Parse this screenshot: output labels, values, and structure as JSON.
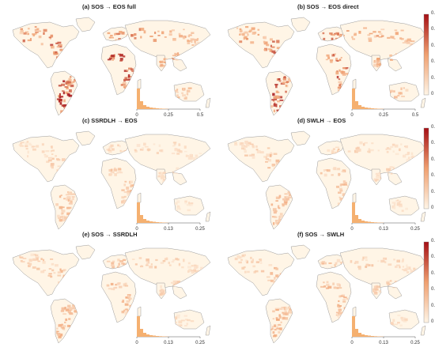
{
  "panels": [
    {
      "title": "(a) SOS → EOS full",
      "hist_ticks": [
        "0",
        "0.25",
        "0.5"
      ],
      "intensity": 1.0
    },
    {
      "title": "(b) SOS → EOS direct",
      "hist_ticks": [
        "0",
        "0.25",
        "0.5"
      ],
      "intensity": 0.9
    },
    {
      "title": "(c) SSRDLH → EOS",
      "hist_ticks": [
        "0",
        "0.13",
        "0.25"
      ],
      "intensity": 0.35
    },
    {
      "title": "(d) SWLH → EOS",
      "hist_ticks": [
        "0",
        "0.13",
        "0.25"
      ],
      "intensity": 0.4
    },
    {
      "title": "(e) SOS → SSRDLH",
      "hist_ticks": [
        "0",
        "0.13",
        "0.25"
      ],
      "intensity": 0.45
    },
    {
      "title": "(f) SOS → SWLH",
      "hist_ticks": [
        "0",
        "0.13",
        "0.25"
      ],
      "intensity": 0.45
    }
  ],
  "colorbars": [
    {
      "ticks": [
        "0.5",
        "0.4",
        "0.3",
        "0.2",
        "0.1",
        "0"
      ]
    },
    {
      "ticks": [
        "0.25",
        "0.2",
        "0.15",
        "0.1",
        "0.05",
        "0"
      ]
    },
    {
      "ticks": [
        "0.25",
        "0.2",
        "0.15",
        "0.1",
        "0.05",
        "0"
      ]
    }
  ],
  "colors": {
    "low": "#fff5e6",
    "mid": "#f0a070",
    "high": "#a50f15",
    "coast": "#9a9a9a",
    "hist": "#f5b070"
  }
}
